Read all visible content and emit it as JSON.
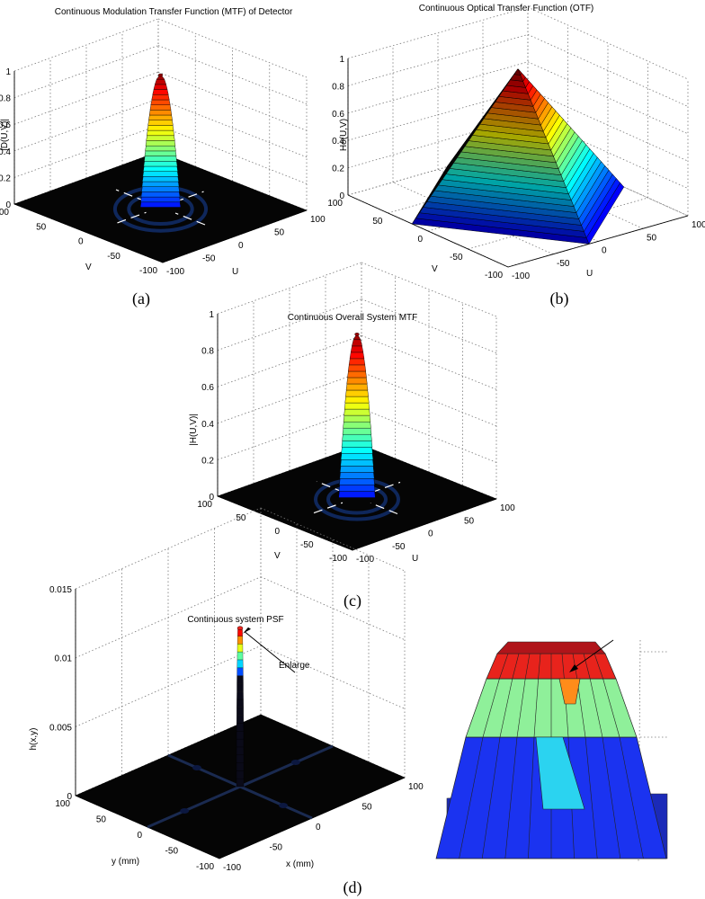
{
  "chart_data": [
    {
      "id": "a",
      "type": "surface",
      "caption": "(a)",
      "title": "Continuous Modulation Transfer Function (MTF) of Detector",
      "zlabel": "|D(U,V)|",
      "xlabel": "U",
      "ylabel": "V",
      "xlim": [
        -100,
        100
      ],
      "ylim": [
        -100,
        100
      ],
      "zlim": [
        0,
        1
      ],
      "x_ticks": [
        "100",
        "50",
        "0",
        "-50",
        "-100"
      ],
      "y_ticks": [
        "100",
        "50",
        "0",
        "-50",
        "-100"
      ],
      "z_ticks": [
        "1",
        "0.8",
        "0.6",
        "0.4",
        "0.2",
        "0"
      ],
      "peak": {
        "x": 0,
        "y": 0,
        "z": 1
      },
      "grid": true,
      "colormap": "jet"
    },
    {
      "id": "b",
      "type": "surface",
      "caption": "(b)",
      "title": "Continuous Optical Transfer Function (OTF)",
      "zlabel": "Ho(U,V)",
      "xlabel": "U",
      "ylabel": "V",
      "xlim": [
        -100,
        100
      ],
      "ylim": [
        -100,
        100
      ],
      "zlim": [
        0,
        1
      ],
      "x_ticks": [
        "100",
        "50",
        "0",
        "-50",
        "-100"
      ],
      "y_ticks": [
        "100",
        "50",
        "0",
        "-50",
        "-100"
      ],
      "z_ticks": [
        "1",
        "0.8",
        "0.6",
        "0.4",
        "0.2",
        "0"
      ],
      "peak": {
        "x": 0,
        "y": 0,
        "z": 1
      },
      "grid": true,
      "colormap": "jet"
    },
    {
      "id": "c",
      "type": "surface",
      "caption": "(c)",
      "title": "Continuous Overall System MTF",
      "zlabel": "|H(U,V)|",
      "xlabel": "U",
      "ylabel": "V",
      "xlim": [
        -100,
        100
      ],
      "ylim": [
        -100,
        100
      ],
      "zlim": [
        0,
        1
      ],
      "x_ticks": [
        "100",
        "50",
        "0",
        "-50",
        "-100"
      ],
      "y_ticks": [
        "100",
        "50",
        "0",
        "-50",
        "-100"
      ],
      "z_ticks": [
        "1",
        "0.8",
        "0.6",
        "0.4",
        "0.2",
        "0"
      ],
      "peak": {
        "x": 0,
        "y": 0,
        "z": 0.9
      },
      "grid": true,
      "colormap": "jet"
    },
    {
      "id": "d",
      "type": "surface",
      "caption": "(d)",
      "title": "Continuous system PSF",
      "zlabel": "h(x,y)",
      "xlabel": "x (mm)",
      "ylabel": "y (mm)",
      "xlim": [
        -100,
        100
      ],
      "ylim": [
        -100,
        100
      ],
      "zlim": [
        0,
        0.015
      ],
      "x_ticks": [
        "100",
        "50",
        "0",
        "-50",
        "-100"
      ],
      "y_ticks": [
        "100",
        "50",
        "0",
        "-50",
        "-100"
      ],
      "z_ticks": [
        "0.015",
        "0.01",
        "0.005",
        "0"
      ],
      "peak": {
        "x": 0,
        "y": 0,
        "z": 0.0115
      },
      "annotation": "Enlarge",
      "grid": true,
      "colormap": "jet"
    }
  ],
  "colors": {
    "surface_dark": "#000000",
    "jet_red": "#e8231c",
    "jet_orange": "#ff8c1a",
    "jet_green": "#8ff09a",
    "jet_cyan": "#2bd3f0",
    "jet_blue": "#1b33f0",
    "mesh": "#222222"
  }
}
